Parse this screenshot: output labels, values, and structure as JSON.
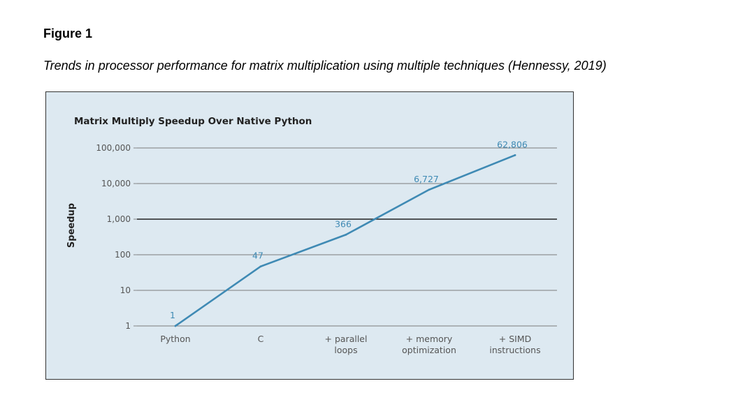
{
  "figure": {
    "label": "Figure 1",
    "caption": "Trends in processor performance for matrix multiplication using multiple techniques (Hennessy, 2019)"
  },
  "colors": {
    "panel_bg": "#dde9f1",
    "series_line": "#3f8ab4",
    "data_label": "#3f8ab4",
    "grid": "#7a7a7a",
    "grid_emphasis": "#222222",
    "axis_text": "#555555"
  },
  "chart_data": {
    "type": "line",
    "title": "Matrix Multiply Speedup Over Native Python",
    "xlabel": "",
    "ylabel": "Speedup",
    "yscale": "log",
    "ylim": [
      1,
      100000
    ],
    "yticks": [
      1,
      10,
      100,
      1000,
      10000,
      100000
    ],
    "ytick_labels": [
      "1",
      "10",
      "100",
      "1,000",
      "10,000",
      "100,000"
    ],
    "emphasized_gridline": 1000,
    "grid": true,
    "categories": [
      [
        "Python"
      ],
      [
        "C"
      ],
      [
        "+ parallel",
        "loops"
      ],
      [
        "+ memory",
        "optimization"
      ],
      [
        "+ SIMD",
        "instructions"
      ]
    ],
    "series": [
      {
        "values": [
          1,
          47,
          366,
          6727,
          62806
        ],
        "labels": [
          "1",
          "47",
          "366",
          "6,727",
          "62,806"
        ]
      }
    ]
  }
}
